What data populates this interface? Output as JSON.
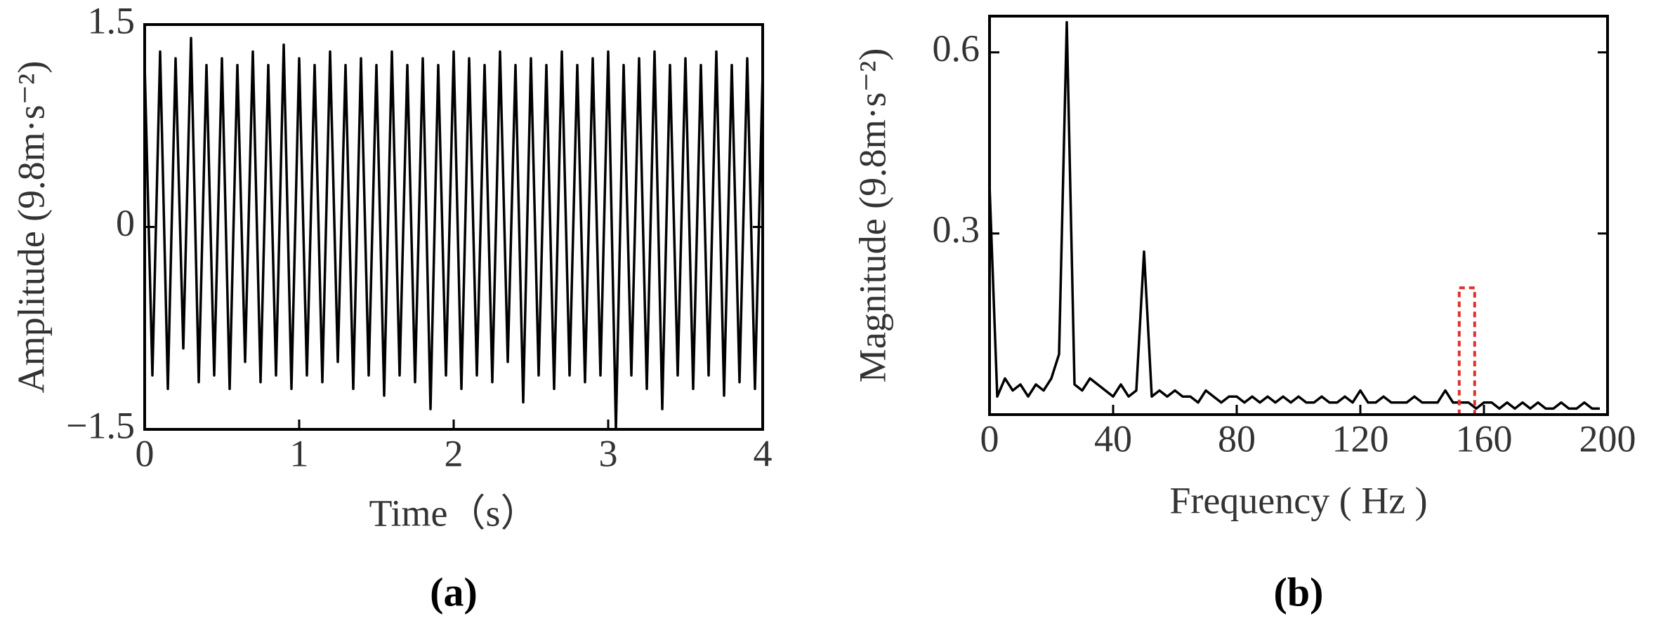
{
  "chart_data": [
    {
      "type": "line",
      "caption": "(a)",
      "x_label": "Time（s）",
      "y_label": "Amplitude (9.8m·s⁻²)",
      "color": "#000000",
      "xlim": [
        0,
        4
      ],
      "xticks": [
        0,
        1,
        2,
        3,
        4
      ],
      "ylim": [
        -1.5,
        1.5
      ],
      "yticks": [
        {
          "value": -1.5,
          "label": "−1.5"
        },
        0,
        1.5
      ],
      "x": [
        0,
        0.05,
        0.1,
        0.15,
        0.2,
        0.25,
        0.3,
        0.35,
        0.4,
        0.45,
        0.5,
        0.55,
        0.6,
        0.65,
        0.7,
        0.75,
        0.8,
        0.85,
        0.9,
        0.95,
        1,
        1.05,
        1.1,
        1.15,
        1.2,
        1.25,
        1.3,
        1.35,
        1.4,
        1.45,
        1.5,
        1.55,
        1.6,
        1.65,
        1.7,
        1.75,
        1.8,
        1.85,
        1.9,
        1.95,
        2,
        2.05,
        2.1,
        2.15,
        2.2,
        2.25,
        2.3,
        2.35,
        2.4,
        2.45,
        2.5,
        2.55,
        2.6,
        2.65,
        2.7,
        2.75,
        2.8,
        2.85,
        2.9,
        2.95,
        3,
        3.05,
        3.1,
        3.15,
        3.2,
        3.25,
        3.3,
        3.35,
        3.4,
        3.45,
        3.5,
        3.55,
        3.6,
        3.65,
        3.7,
        3.75,
        3.8,
        3.85,
        3.9,
        3.95,
        4
      ],
      "values": [
        1.2,
        -1.1,
        1.3,
        -1.2,
        1.25,
        -0.9,
        1.4,
        -1.15,
        1.2,
        -1.1,
        1.25,
        -1.2,
        1.2,
        -1.0,
        1.3,
        -1.15,
        1.2,
        -1.1,
        1.35,
        -1.2,
        1.25,
        -1.1,
        1.2,
        -1.15,
        1.3,
        -1.0,
        1.2,
        -1.2,
        1.25,
        -1.1,
        1.2,
        -1.25,
        1.3,
        -1.1,
        1.2,
        -1.15,
        1.25,
        -1.35,
        1.2,
        -1.1,
        1.3,
        -1.2,
        1.25,
        -1.1,
        1.2,
        -1.15,
        1.3,
        -1.0,
        1.2,
        -1.3,
        1.25,
        -1.1,
        1.2,
        -1.2,
        1.3,
        -1.1,
        1.2,
        -1.15,
        1.25,
        -1.1,
        1.3,
        -1.5,
        1.2,
        -1.1,
        1.25,
        -1.2,
        1.3,
        -1.35,
        1.2,
        -1.1,
        1.25,
        -1.2,
        1.2,
        -1.1,
        1.3,
        -1.25,
        1.2,
        -1.15,
        1.25,
        -1.2,
        1.15
      ]
    },
    {
      "type": "line",
      "caption": "(b)",
      "x_label": "Frequency ( Hz )",
      "y_label": "Magnitude (9.8m·s⁻²)",
      "color": "#000000",
      "xlim": [
        0,
        200
      ],
      "xticks": [
        0,
        40,
        80,
        120,
        160,
        200
      ],
      "ylim": [
        0,
        0.66
      ],
      "yticks": [
        0.3,
        0.6
      ],
      "annotation_box": {
        "x": [
          152,
          157
        ],
        "y": [
          0,
          0.21
        ],
        "color": "#e03030"
      },
      "x": [
        0,
        2.5,
        5,
        7.5,
        10,
        12.5,
        15,
        17.5,
        20,
        22.5,
        25,
        27.5,
        30,
        32.5,
        35,
        37.5,
        40,
        42.5,
        45,
        47.5,
        50,
        52.5,
        55,
        57.5,
        60,
        62.5,
        65,
        67.5,
        70,
        72.5,
        75,
        77.5,
        80,
        82.5,
        85,
        87.5,
        90,
        92.5,
        95,
        97.5,
        100,
        102.5,
        105,
        107.5,
        110,
        112.5,
        115,
        117.5,
        120,
        122.5,
        125,
        127.5,
        130,
        132.5,
        135,
        137.5,
        140,
        142.5,
        145,
        147.5,
        150,
        152.5,
        155,
        157.5,
        160,
        162.5,
        165,
        167.5,
        170,
        172.5,
        175,
        177.5,
        180,
        182.5,
        185,
        187.5,
        190,
        192.5,
        195,
        197.5
      ],
      "values": [
        0.38,
        0.03,
        0.06,
        0.04,
        0.05,
        0.03,
        0.05,
        0.04,
        0.06,
        0.1,
        0.65,
        0.05,
        0.04,
        0.06,
        0.05,
        0.04,
        0.03,
        0.05,
        0.03,
        0.04,
        0.27,
        0.03,
        0.04,
        0.03,
        0.04,
        0.03,
        0.03,
        0.02,
        0.04,
        0.03,
        0.02,
        0.03,
        0.03,
        0.02,
        0.03,
        0.02,
        0.03,
        0.02,
        0.03,
        0.02,
        0.03,
        0.02,
        0.02,
        0.03,
        0.02,
        0.02,
        0.03,
        0.02,
        0.04,
        0.02,
        0.02,
        0.03,
        0.02,
        0.02,
        0.02,
        0.03,
        0.02,
        0.02,
        0.02,
        0.04,
        0.02,
        0.02,
        0.02,
        0.01,
        0.02,
        0.02,
        0.01,
        0.02,
        0.01,
        0.02,
        0.01,
        0.02,
        0.01,
        0.01,
        0.02,
        0.01,
        0.01,
        0.02,
        0.01,
        0.01
      ]
    }
  ]
}
